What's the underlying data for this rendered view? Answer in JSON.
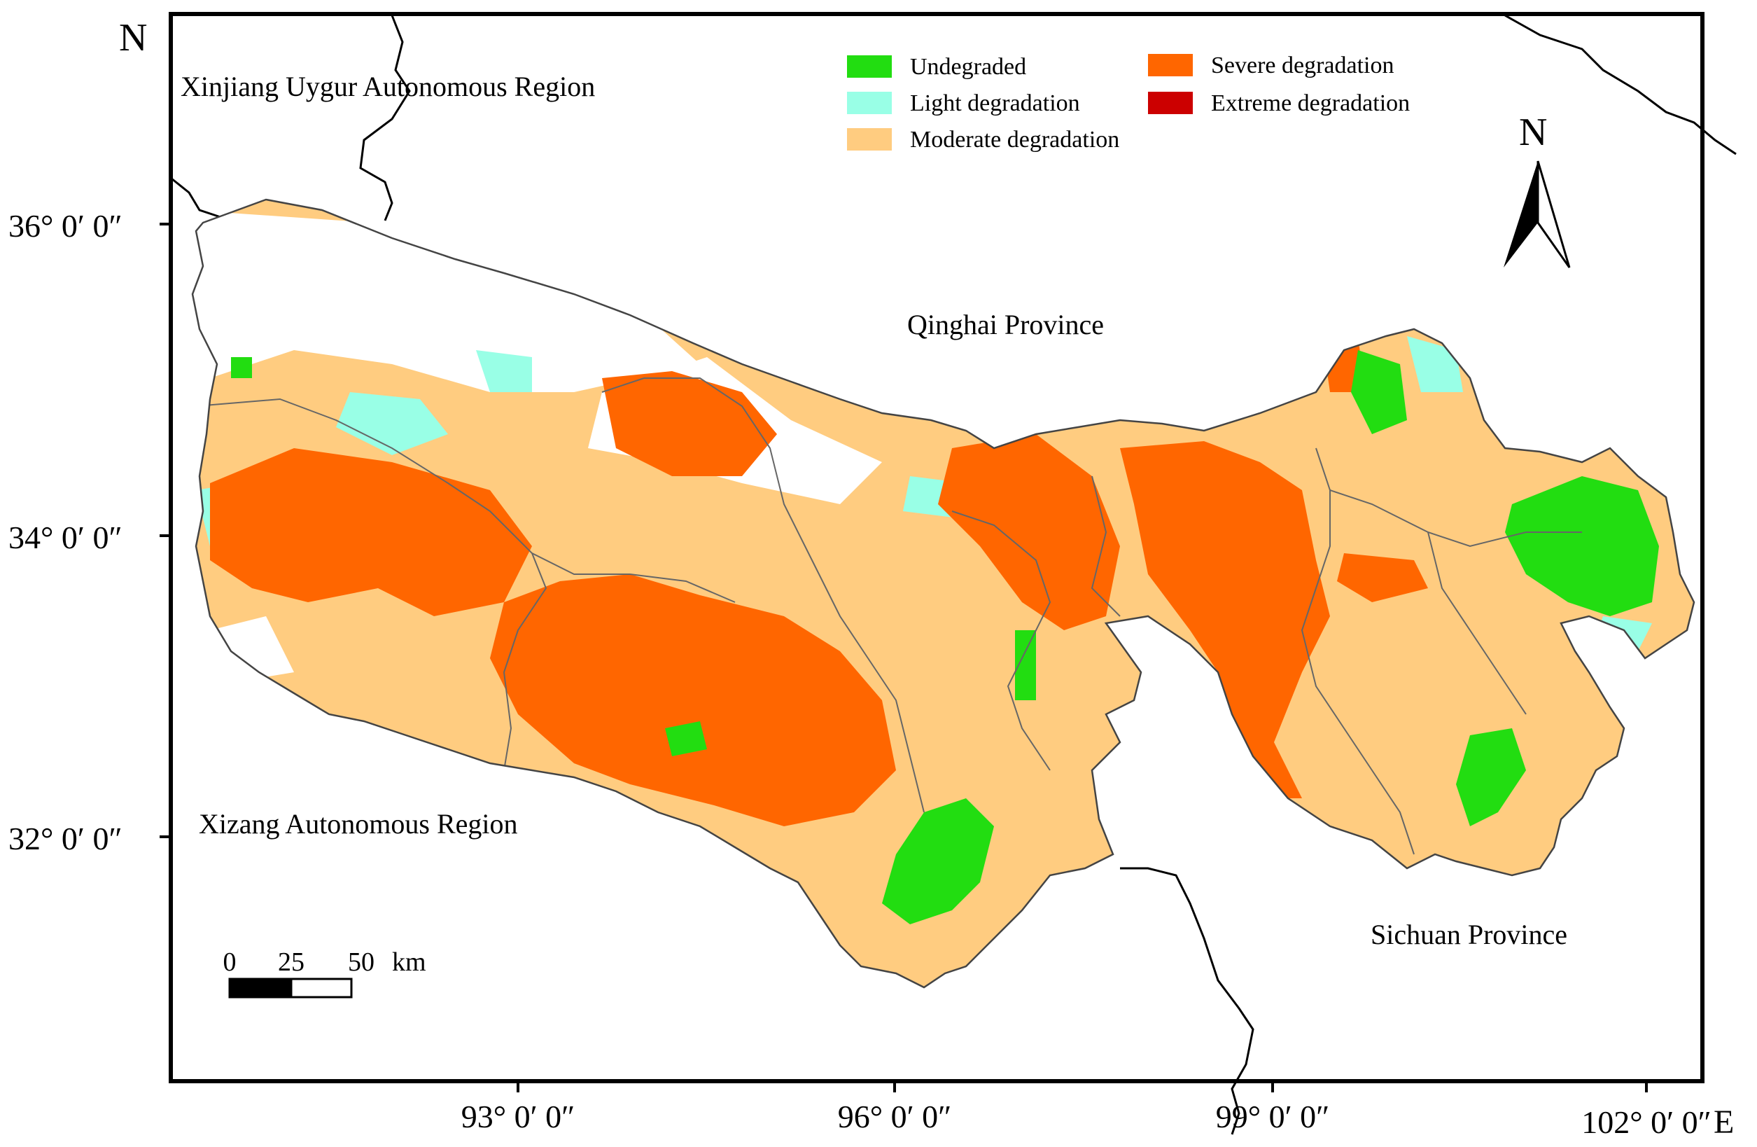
{
  "map": {
    "north_corner_label": "N",
    "east_corner_label": "E",
    "latitude_labels": [
      "36° 0′ 0″",
      "34° 0′ 0″",
      "32° 0′ 0″"
    ],
    "longitude_labels": [
      "93° 0′ 0″",
      "96° 0′ 0″",
      "99° 0′ 0″",
      "102° 0′ 0″"
    ],
    "regions": {
      "xinjiang": "Xinjiang Uygur Autonomous Region",
      "qinghai": "Qinghai Province",
      "xizang": "Xizang Autonomous Region",
      "sichuan": "Sichuan Province"
    },
    "north_arrow_label": "N",
    "scale_bar": {
      "labels": [
        "0",
        "25",
        "50"
      ],
      "unit": "km"
    }
  },
  "legend": {
    "items": [
      {
        "label": "Undegraded",
        "color": "#22dd11"
      },
      {
        "label": "Light degradation",
        "color": "#99ffe6"
      },
      {
        "label": "Moderate degradation",
        "color": "#ffcc80"
      },
      {
        "label": "Severe degradation",
        "color": "#ff6600"
      },
      {
        "label": "Extreme degradation",
        "color": "#cc0000"
      }
    ]
  },
  "colors": {
    "frame": "#000000",
    "boundary": "#555555",
    "background": "#ffffff"
  }
}
